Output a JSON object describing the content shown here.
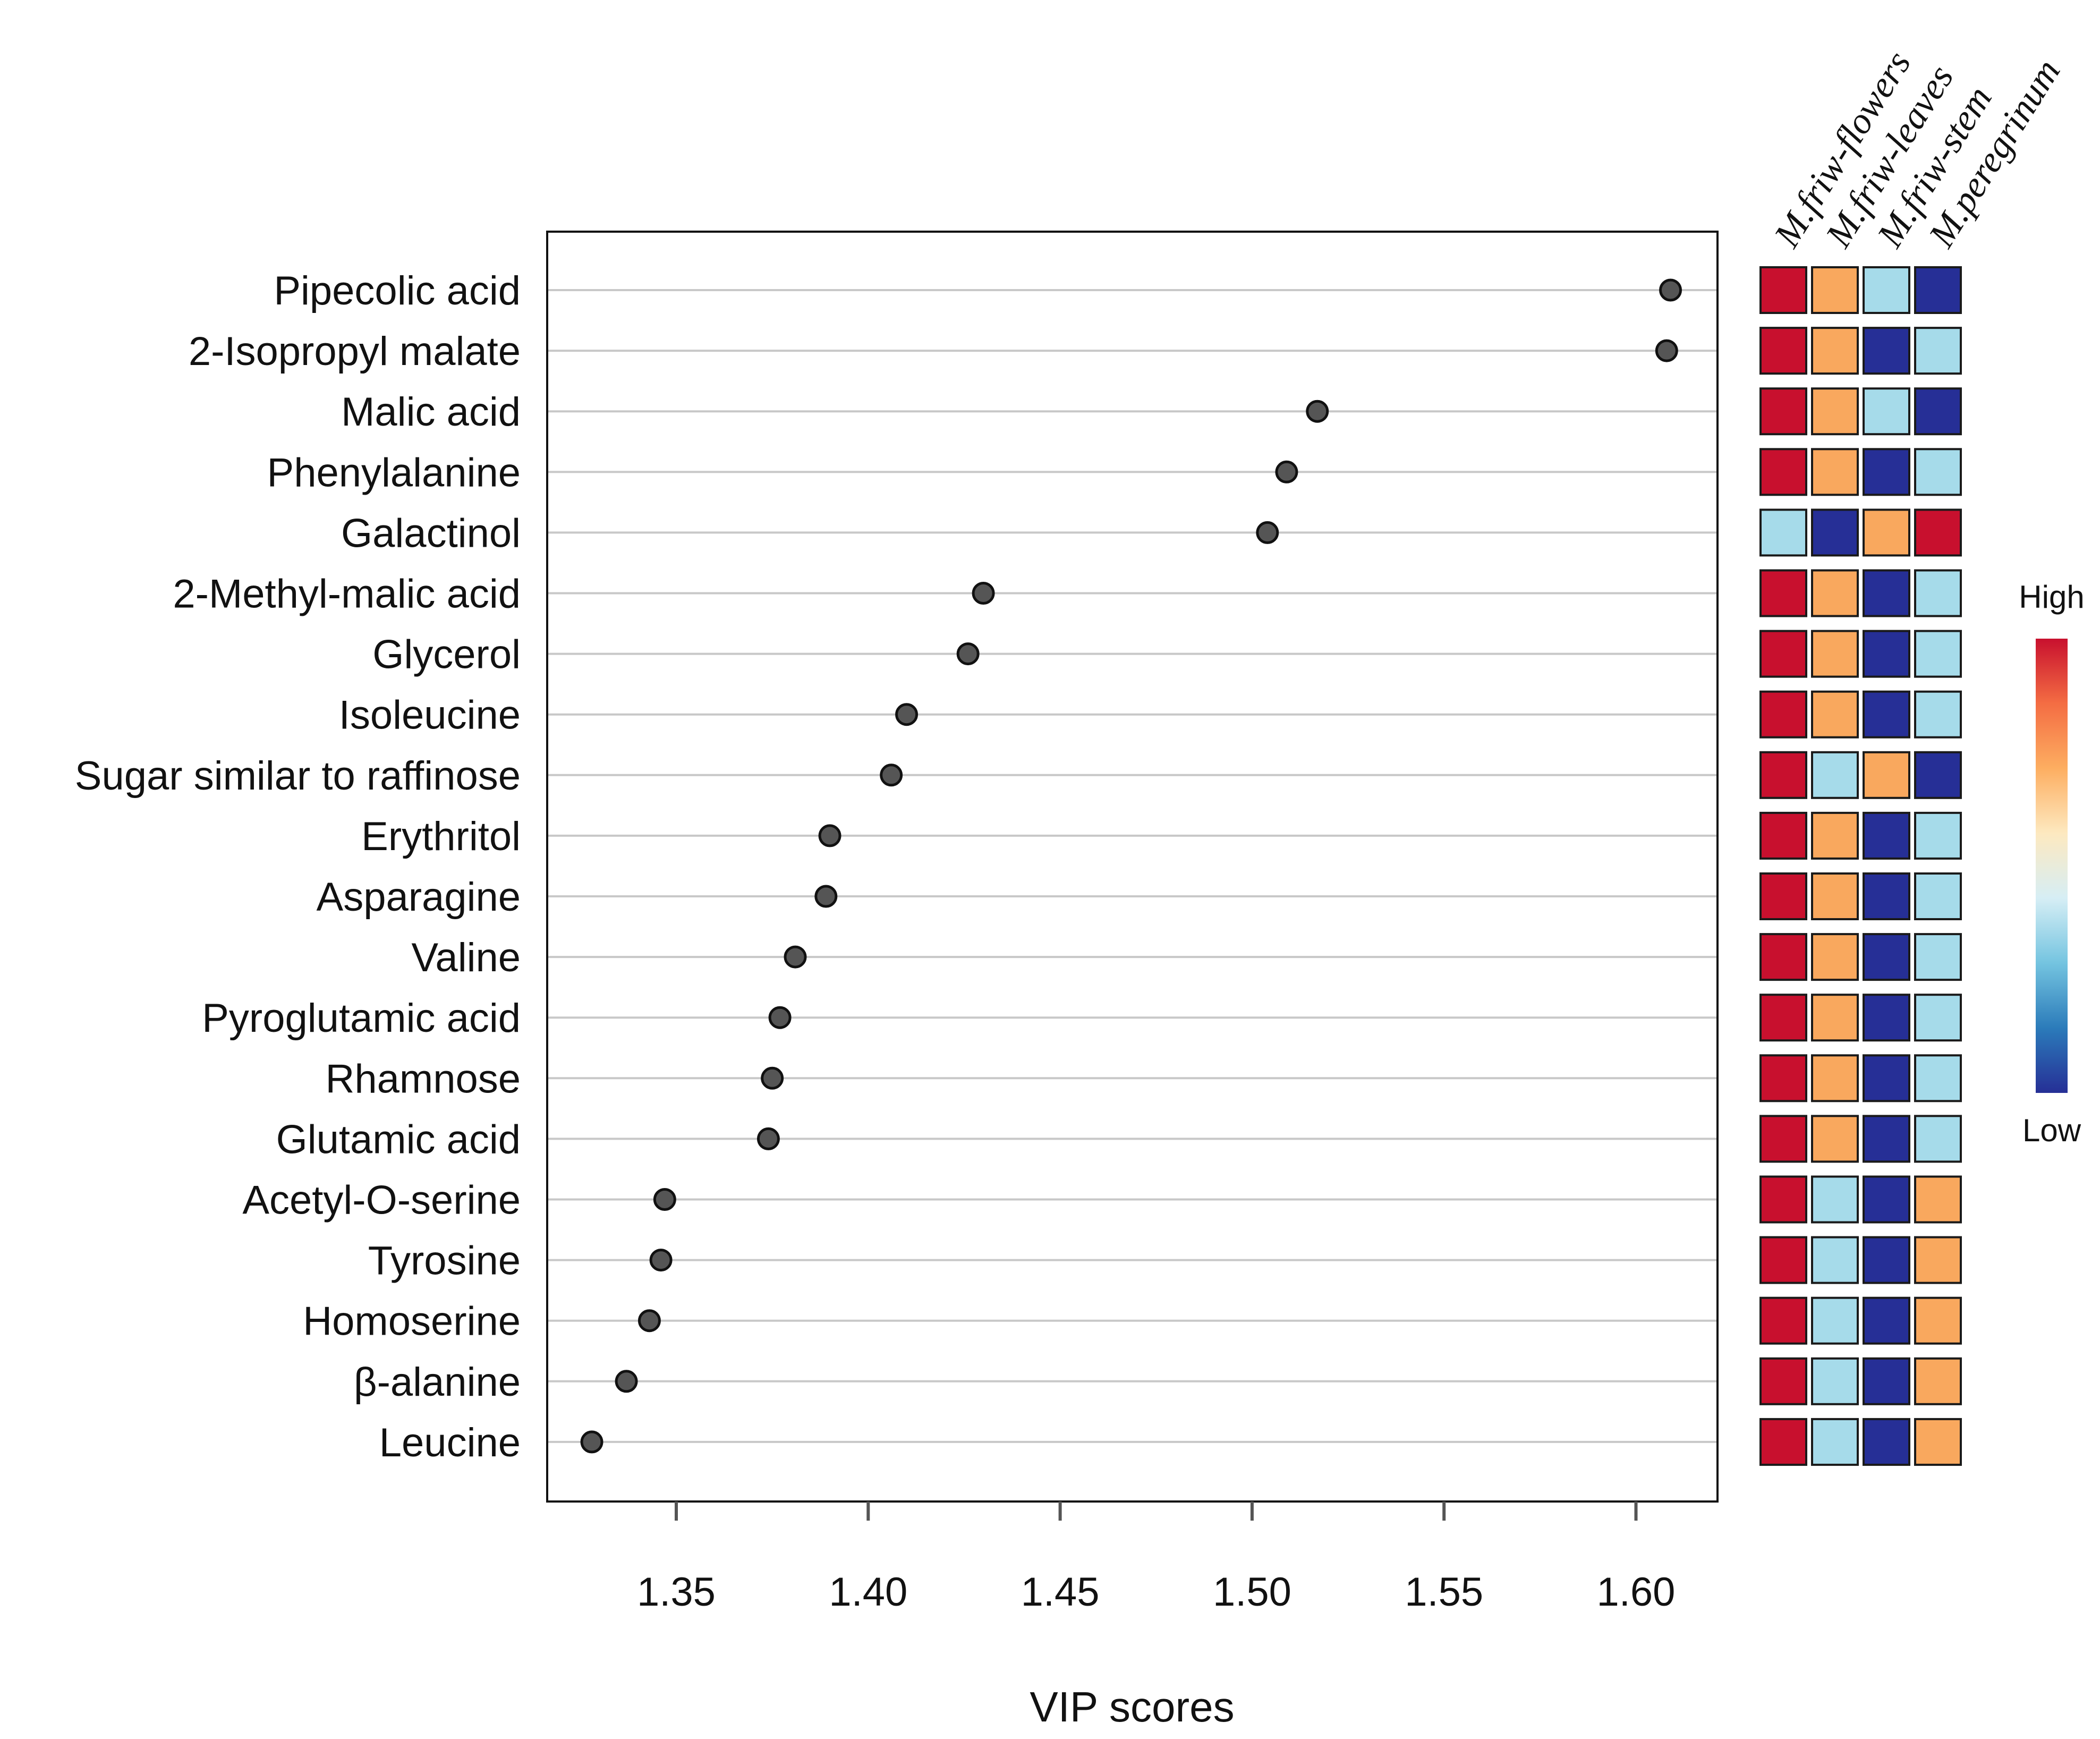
{
  "chart_data": {
    "type": "scatter",
    "xlabel": "VIP scores",
    "xlim": [
      1.315,
      1.62
    ],
    "xticks": [
      1.35,
      1.4,
      1.45,
      1.5,
      1.55,
      1.6
    ],
    "xtick_labels": [
      "1.35",
      "1.40",
      "1.45",
      "1.50",
      "1.55",
      "1.60"
    ],
    "grid": "horizontal",
    "categories": [
      "Pipecolic acid",
      "2-Isopropyl malate",
      "Malic acid",
      "Phenylalanine",
      "Galactinol",
      "2-Methyl-malic acid",
      "Glycerol",
      "Isoleucine",
      "Sugar similar to raffinose",
      "Erythritol",
      "Asparagine",
      "Valine",
      "Pyroglutamic acid",
      "Rhamnose",
      "Glutamic acid",
      "Acetyl-O-serine",
      "Tyrosine",
      "Homoserine",
      "β-alanine",
      "Leucine"
    ],
    "values": [
      1.609,
      1.608,
      1.517,
      1.509,
      1.504,
      1.43,
      1.426,
      1.41,
      1.406,
      1.39,
      1.389,
      1.381,
      1.377,
      1.375,
      1.374,
      1.347,
      1.346,
      1.343,
      1.337,
      1.328
    ],
    "heatmap": {
      "columns": [
        "M.friw-flowers",
        "M.friw-leaves",
        "M.friw-stem",
        "M.peregrinum"
      ],
      "levels": {
        "r": "#c8102e",
        "o": "#f9a85e",
        "l": "#a6dbea",
        "d": "#262f96"
      },
      "cells": [
        [
          "r",
          "o",
          "l",
          "d"
        ],
        [
          "r",
          "o",
          "d",
          "l"
        ],
        [
          "r",
          "o",
          "l",
          "d"
        ],
        [
          "r",
          "o",
          "d",
          "l"
        ],
        [
          "l",
          "d",
          "o",
          "r"
        ],
        [
          "r",
          "o",
          "d",
          "l"
        ],
        [
          "r",
          "o",
          "d",
          "l"
        ],
        [
          "r",
          "o",
          "d",
          "l"
        ],
        [
          "r",
          "l",
          "o",
          "d"
        ],
        [
          "r",
          "o",
          "d",
          "l"
        ],
        [
          "r",
          "o",
          "d",
          "l"
        ],
        [
          "r",
          "o",
          "d",
          "l"
        ],
        [
          "r",
          "o",
          "d",
          "l"
        ],
        [
          "r",
          "o",
          "d",
          "l"
        ],
        [
          "r",
          "o",
          "d",
          "l"
        ],
        [
          "r",
          "l",
          "d",
          "o"
        ],
        [
          "r",
          "l",
          "d",
          "o"
        ],
        [
          "r",
          "l",
          "d",
          "o"
        ],
        [
          "r",
          "l",
          "d",
          "o"
        ],
        [
          "r",
          "l",
          "d",
          "o"
        ]
      ]
    },
    "legend": {
      "high_label": "High",
      "low_label": "Low",
      "placement": "right",
      "gradient": [
        "#c8102e",
        "#f46d43",
        "#fdae61",
        "#fde9c0",
        "#d6eef5",
        "#74c4e0",
        "#2b7bba",
        "#262f96"
      ]
    },
    "colors": {
      "point_fill": "#555555",
      "point_stroke": "#111111",
      "gridline": "#c8c8c8"
    }
  }
}
